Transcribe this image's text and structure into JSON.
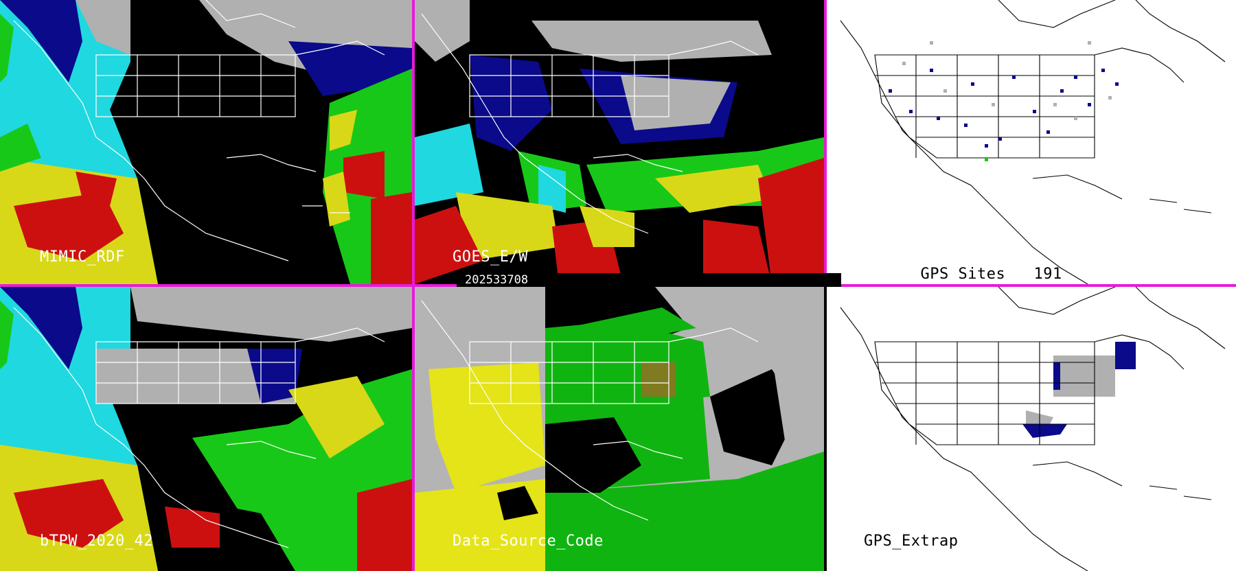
{
  "panels": {
    "mimic": {
      "label": "MIMIC_RDF"
    },
    "goes": {
      "label": "GOES_E/W"
    },
    "gps_sites": {
      "label": "GPS Sites",
      "count": "191"
    },
    "btpw": {
      "label": "bTPW_2020_42"
    },
    "source": {
      "label": "Data_Source_Code"
    },
    "gps_extrap": {
      "label": "GPS_Extrap"
    }
  },
  "timestamp": "202533708",
  "colors": {
    "divider": "#e81ad8",
    "cloud_gray": "#b0b0b0",
    "dark_blue": "#0a0a8a",
    "cyan": "#20d8e0",
    "green": "#18c818",
    "yellow": "#d8d818",
    "red": "#cc1010",
    "source_yellow": "#e4e418",
    "source_green": "#10b410",
    "source_gray": "#b4b4b4"
  }
}
